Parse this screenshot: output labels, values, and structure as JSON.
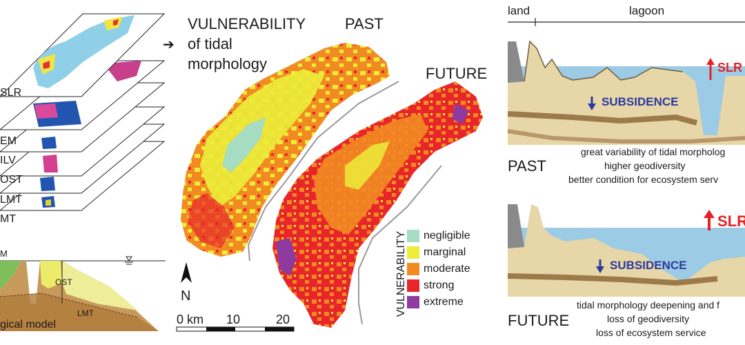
{
  "layers": {
    "labels": [
      "SLR",
      "EM",
      "ILV",
      "OST",
      "LMT",
      "MT"
    ]
  },
  "section_model": {
    "label_left": "M",
    "label_ost": "OST",
    "label_lmt": "LMT",
    "caption": "gical model"
  },
  "vulnerability": {
    "title_lines": [
      "VULNERABILITY",
      "of tidal",
      "morphology"
    ],
    "past_label": "PAST",
    "future_label": "FUTURE",
    "legend_title": "VULNERABILITY",
    "legend": [
      {
        "label": "negligible",
        "color": "#a6dcc1"
      },
      {
        "label": "marginal",
        "color": "#ecec3a"
      },
      {
        "label": "moderate",
        "color": "#f28a22"
      },
      {
        "label": "strong",
        "color": "#e8262a"
      },
      {
        "label": "extreme",
        "color": "#8e3a9e"
      }
    ],
    "north_label": "N",
    "scale_labels": [
      "0 km",
      "10",
      "20"
    ]
  },
  "scenarios": {
    "header_land": "land",
    "header_lagoon": "lagoon",
    "slr_label": "SLR",
    "subsidence_label": "SUBSIDENCE",
    "past": {
      "label": "PAST",
      "lines": [
        "great variability of tidal morpholog",
        "higher geodiversity",
        "better condition for ecosystem serv"
      ]
    },
    "future": {
      "label": "FUTURE",
      "lines": [
        "tidal morphology deepening and f",
        "loss of geodiversity",
        "loss of ecosystem service"
      ]
    }
  }
}
